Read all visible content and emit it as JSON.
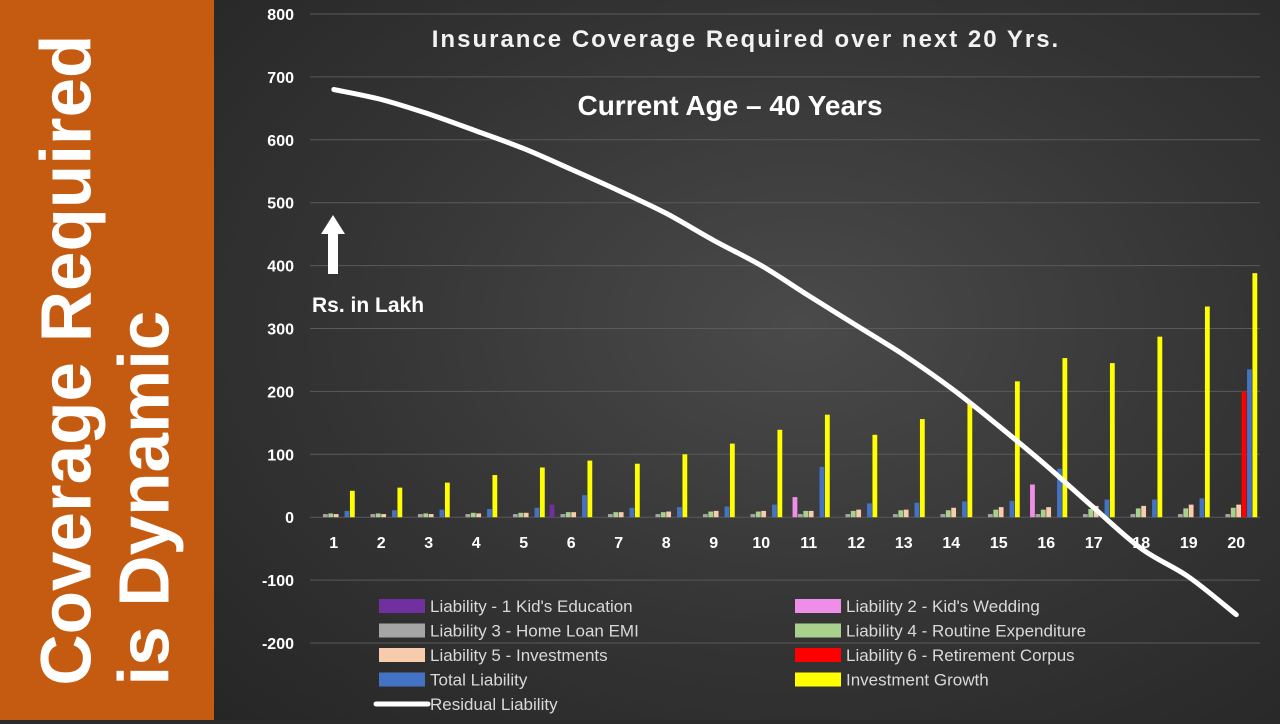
{
  "banner": {
    "line1": "Coverage Required",
    "line2": "is Dynamic",
    "background": "#c55a11"
  },
  "chart_data": {
    "type": "bar",
    "title": "Insurance Coverage Required over next 20 Yrs.",
    "subtitle": "Current Age – 40 Years",
    "unit_annotation": "Rs. in Lakh",
    "ylim": [
      -200,
      800
    ],
    "yticks": [
      800,
      700,
      600,
      500,
      400,
      300,
      200,
      100,
      0,
      -100,
      -200
    ],
    "grid": true,
    "legend_position": "bottom",
    "categories": [
      "1",
      "2",
      "3",
      "4",
      "5",
      "6",
      "7",
      "8",
      "9",
      "10",
      "11",
      "12",
      "13",
      "14",
      "15",
      "16",
      "17",
      "18",
      "19",
      "20"
    ],
    "series": [
      {
        "name": "Liability - 1 Kid's Education",
        "type": "bar",
        "color": "#7030a0",
        "values": [
          0,
          0,
          0,
          0,
          0,
          20,
          0,
          0,
          0,
          0,
          0,
          0,
          0,
          0,
          0,
          0,
          0,
          0,
          0,
          0
        ]
      },
      {
        "name": "Liability 2 - Kid's Wedding",
        "type": "bar",
        "color": "#ee8ee8",
        "values": [
          0,
          0,
          0,
          0,
          0,
          0,
          0,
          0,
          0,
          0,
          32,
          0,
          0,
          0,
          0,
          52,
          0,
          0,
          0,
          0
        ]
      },
      {
        "name": "Liability 3 - Home Loan EMI",
        "type": "bar",
        "color": "#a5a5a5",
        "values": [
          5,
          5,
          5,
          5,
          5,
          5,
          5,
          5,
          5,
          5,
          5,
          5,
          5,
          5,
          5,
          5,
          5,
          5,
          5,
          5
        ]
      },
      {
        "name": "Liability 4 - Routine Expenditure",
        "type": "bar",
        "color": "#a9d18e",
        "values": [
          6,
          6,
          6,
          7,
          7,
          8,
          8,
          8,
          9,
          9,
          10,
          10,
          11,
          11,
          12,
          12,
          13,
          14,
          14,
          15
        ]
      },
      {
        "name": "Liability 5 - Investments",
        "type": "bar",
        "color": "#f8cbad",
        "values": [
          5,
          5,
          5,
          6,
          7,
          8,
          8,
          9,
          10,
          10,
          10,
          12,
          12,
          15,
          16,
          16,
          18,
          18,
          20,
          20
        ]
      },
      {
        "name": "Liability 6 - Retirement Corpus",
        "type": "bar",
        "color": "#ff0000",
        "values": [
          0,
          0,
          0,
          0,
          0,
          0,
          0,
          0,
          0,
          0,
          0,
          0,
          0,
          0,
          0,
          0,
          0,
          0,
          0,
          200
        ]
      },
      {
        "name": "Total Liability",
        "type": "bar",
        "color": "#4472c4",
        "values": [
          10,
          11,
          12,
          13,
          15,
          35,
          15,
          16,
          17,
          20,
          80,
          22,
          23,
          25,
          26,
          77,
          28,
          28,
          30,
          235
        ]
      },
      {
        "name": "Investment Growth",
        "type": "bar",
        "color": "#ffff00",
        "values": [
          42,
          47,
          55,
          67,
          79,
          90,
          85,
          100,
          117,
          139,
          163,
          131,
          156,
          184,
          216,
          253,
          245,
          287,
          335,
          388
        ]
      },
      {
        "name": "Residual Liability",
        "type": "line",
        "color": "#ffffff",
        "values": [
          680,
          664,
          641,
          614,
          586,
          553,
          519,
          483,
          440,
          400,
          352,
          305,
          258,
          205,
          145,
          82,
          15,
          -50,
          -95,
          -155
        ]
      }
    ]
  }
}
